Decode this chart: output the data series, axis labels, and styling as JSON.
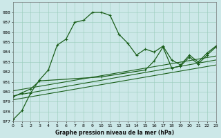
{
  "title": "",
  "xlabel": "Graphe pression niveau de la mer (hPa)",
  "bg_color": "#cce8e8",
  "grid_color": "#99ccbb",
  "line_color": "#1a5e1a",
  "ylim": [
    977,
    989
  ],
  "xlim": [
    0,
    23
  ],
  "yticks": [
    977,
    978,
    979,
    980,
    981,
    982,
    983,
    984,
    985,
    986,
    987,
    988
  ],
  "xticks": [
    0,
    1,
    2,
    3,
    4,
    5,
    6,
    7,
    8,
    9,
    10,
    11,
    12,
    13,
    14,
    15,
    16,
    17,
    18,
    19,
    20,
    21,
    22,
    23
  ],
  "series1_x": [
    0,
    1,
    2,
    3,
    4,
    5,
    6,
    7,
    8,
    9,
    10,
    11,
    12,
    13,
    14,
    15,
    16,
    17,
    18,
    19,
    20,
    21,
    22,
    23
  ],
  "series1_y": [
    977.2,
    978.1,
    979.9,
    981.2,
    982.2,
    984.7,
    985.3,
    987.0,
    987.2,
    988.0,
    988.0,
    987.7,
    985.8,
    984.9,
    983.7,
    984.3,
    984.0,
    984.6,
    983.2,
    982.7,
    983.7,
    983.0,
    983.9,
    984.6
  ],
  "series2_x": [
    0,
    1,
    2,
    3,
    10,
    15,
    16,
    17,
    18,
    19,
    20,
    21,
    22,
    23
  ],
  "series2_y": [
    979.5,
    979.9,
    980.3,
    981.1,
    981.5,
    982.2,
    983.1,
    984.5,
    982.4,
    982.6,
    983.5,
    982.8,
    983.7,
    984.5
  ],
  "series3_x": [
    0,
    23
  ],
  "series3_y": [
    979.2,
    982.7
  ],
  "series4_x": [
    0,
    23
  ],
  "series4_y": [
    979.6,
    983.2
  ],
  "series5_x": [
    0,
    23
  ],
  "series5_y": [
    980.1,
    983.6
  ]
}
